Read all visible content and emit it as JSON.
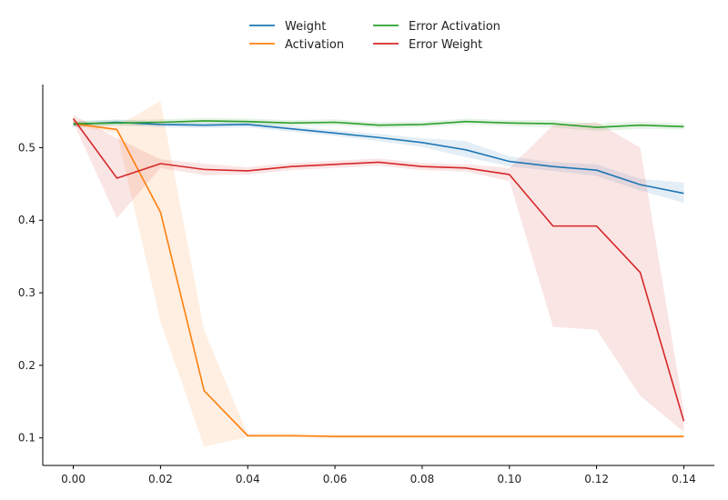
{
  "chart_data": {
    "type": "line",
    "title": "",
    "xlabel": "",
    "ylabel": "",
    "xlim": [
      -0.007,
      0.147
    ],
    "ylim": [
      0.062,
      0.587
    ],
    "x_ticks": [
      "0.00",
      "0.02",
      "0.04",
      "0.06",
      "0.08",
      "0.10",
      "0.12",
      "0.14"
    ],
    "x_tick_values": [
      0,
      0.02,
      0.04,
      0.06,
      0.08,
      0.1,
      0.12,
      0.14
    ],
    "y_ticks": [
      "0.1",
      "0.2",
      "0.3",
      "0.4",
      "0.5"
    ],
    "y_tick_values": [
      0.1,
      0.2,
      0.3,
      0.4,
      0.5
    ],
    "grid": false,
    "legend_position": "top-center",
    "x": [
      0,
      0.01,
      0.02,
      0.03,
      0.04,
      0.05,
      0.06,
      0.07,
      0.08,
      0.09,
      0.1,
      0.11,
      0.12,
      0.13,
      0.14
    ],
    "series": [
      {
        "name": "Weight",
        "color": "#1f77b4",
        "values": [
          0.532,
          0.535,
          0.532,
          0.531,
          0.532,
          0.526,
          0.52,
          0.514,
          0.507,
          0.497,
          0.481,
          0.474,
          0.469,
          0.449,
          0.437
        ],
        "lower": [
          0.528,
          0.531,
          0.528,
          0.527,
          0.528,
          0.522,
          0.516,
          0.509,
          0.501,
          0.487,
          0.474,
          0.468,
          0.461,
          0.441,
          0.424
        ],
        "upper": [
          0.536,
          0.539,
          0.536,
          0.535,
          0.536,
          0.53,
          0.524,
          0.519,
          0.513,
          0.509,
          0.488,
          0.48,
          0.477,
          0.457,
          0.452
        ]
      },
      {
        "name": "Activation",
        "color": "#ff7f0e",
        "values": [
          0.533,
          0.525,
          0.411,
          0.165,
          0.103,
          0.103,
          0.102,
          0.102,
          0.102,
          0.102,
          0.102,
          0.102,
          0.102,
          0.102,
          0.102
        ],
        "lower": [
          0.53,
          0.52,
          0.26,
          0.088,
          0.101,
          0.101,
          0.1,
          0.1,
          0.1,
          0.1,
          0.1,
          0.1,
          0.1,
          0.1,
          0.1
        ],
        "upper": [
          0.537,
          0.53,
          0.564,
          0.248,
          0.105,
          0.105,
          0.104,
          0.104,
          0.104,
          0.104,
          0.104,
          0.104,
          0.104,
          0.104,
          0.104
        ]
      },
      {
        "name": "Error Activation",
        "color": "#2ca02c",
        "values": [
          0.533,
          0.534,
          0.535,
          0.537,
          0.536,
          0.534,
          0.535,
          0.531,
          0.532,
          0.536,
          0.534,
          0.533,
          0.528,
          0.531,
          0.529
        ],
        "lower": [
          0.529,
          0.53,
          0.531,
          0.533,
          0.532,
          0.53,
          0.531,
          0.527,
          0.528,
          0.532,
          0.53,
          0.528,
          0.523,
          0.526,
          0.525
        ],
        "upper": [
          0.537,
          0.538,
          0.539,
          0.541,
          0.54,
          0.538,
          0.539,
          0.535,
          0.536,
          0.54,
          0.538,
          0.538,
          0.533,
          0.536,
          0.533
        ]
      },
      {
        "name": "Error Weight",
        "color": "#d62728",
        "values": [
          0.54,
          0.458,
          0.478,
          0.47,
          0.468,
          0.474,
          0.477,
          0.48,
          0.474,
          0.472,
          0.463,
          0.392,
          0.392,
          0.328,
          0.123
        ],
        "lower": [
          0.535,
          0.403,
          0.472,
          0.462,
          0.463,
          0.469,
          0.472,
          0.475,
          0.469,
          0.467,
          0.454,
          0.253,
          0.249,
          0.158,
          0.108
        ],
        "upper": [
          0.545,
          0.513,
          0.484,
          0.478,
          0.473,
          0.479,
          0.482,
          0.485,
          0.479,
          0.477,
          0.472,
          0.531,
          0.535,
          0.5,
          0.138
        ]
      }
    ]
  }
}
